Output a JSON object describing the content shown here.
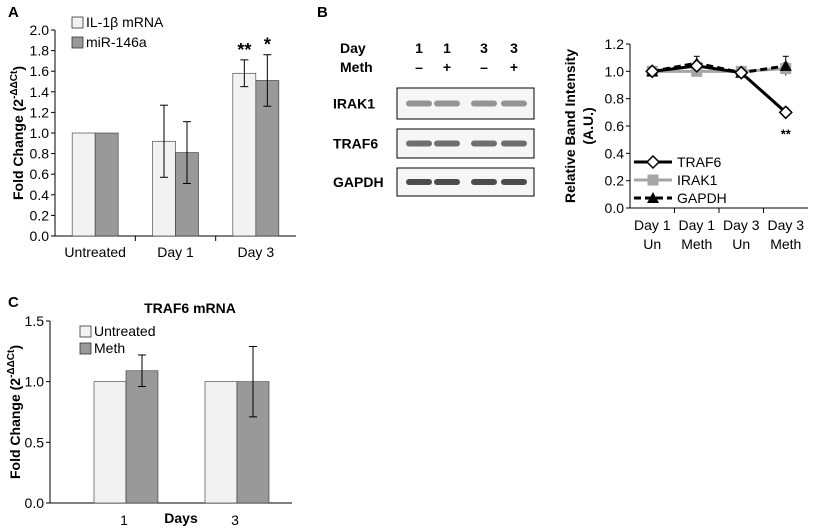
{
  "panels": {
    "a": "A",
    "b": "B",
    "c": "C"
  },
  "colors": {
    "bar_light": "#f2f2f2",
    "bar_dark": "#999999",
    "line_traf6": "#000000",
    "line_irak1": "#a6a6a6",
    "line_gapdh": "#000000"
  },
  "chart_data": [
    {
      "id": "panel_a",
      "type": "bar",
      "categories": [
        "Untreated",
        "Day 1",
        "Day 3"
      ],
      "ylabel_main": "Fold Change (2",
      "ylabel_exp": "-ΔΔCt",
      "ylabel_close": ")",
      "ylim": [
        0,
        2.0
      ],
      "yticks": [
        "0.0",
        "0.2",
        "0.4",
        "0.6",
        "0.8",
        "1.0",
        "1.2",
        "1.4",
        "1.6",
        "1.8",
        "2.0"
      ],
      "legend_position": "top-left",
      "series": [
        {
          "name": "IL-1β mRNA",
          "values": [
            1.0,
            0.92,
            1.58
          ],
          "errors": [
            0,
            0.35,
            0.13
          ]
        },
        {
          "name": "miR-146a",
          "values": [
            1.0,
            0.81,
            1.51
          ],
          "errors": [
            0,
            0.3,
            0.25
          ]
        }
      ],
      "annotations": [
        "**",
        "*"
      ]
    },
    {
      "id": "panel_b_line",
      "type": "line",
      "categories": [
        "Day 1 Un",
        "Day 1 Meth",
        "Day 3 Un",
        "Day 3 Meth"
      ],
      "category_lines": [
        [
          "Day 1",
          "Un"
        ],
        [
          "Day 1",
          "Meth"
        ],
        [
          "Day 3",
          "Un"
        ],
        [
          "Day 3",
          "Meth"
        ]
      ],
      "ylabel_lines": [
        "Relative Band Intensity",
        "(A.U.)"
      ],
      "ylim": [
        0,
        1.2
      ],
      "yticks": [
        "0.0",
        "0.2",
        "0.4",
        "0.6",
        "0.8",
        "1.0",
        "1.2"
      ],
      "legend_position": "bottom-left",
      "series": [
        {
          "name": "TRAF6",
          "values": [
            1.0,
            1.04,
            0.99,
            0.7
          ],
          "errors": [
            0.02,
            0.03,
            0.02,
            0.03
          ]
        },
        {
          "name": "IRAK1",
          "values": [
            1.0,
            1.0,
            1.0,
            1.02
          ],
          "errors": [
            0.02,
            0.02,
            0.02,
            0.04
          ]
        },
        {
          "name": "GAPDH",
          "values": [
            1.0,
            1.06,
            0.99,
            1.04
          ],
          "errors": [
            0.03,
            0.05,
            0.02,
            0.07
          ]
        }
      ],
      "annotations": [
        "**"
      ]
    },
    {
      "id": "panel_c",
      "type": "bar",
      "title": "TRAF6 mRNA",
      "categories": [
        "1",
        "3"
      ],
      "xlabel": "Days",
      "ylabel_main": "Fold Change (2",
      "ylabel_exp": "-ΔΔCt",
      "ylabel_close": ")",
      "ylim": [
        0,
        1.5
      ],
      "yticks": [
        "0.0",
        "0.5",
        "1.0",
        "1.5"
      ],
      "legend_position": "top-left",
      "series": [
        {
          "name": "Untreated",
          "values": [
            1.0,
            1.0
          ],
          "errors": [
            0,
            0
          ]
        },
        {
          "name": "Meth",
          "values": [
            1.09,
            1.0
          ],
          "errors": [
            0.13,
            0.29
          ]
        }
      ]
    }
  ],
  "blot": {
    "day_label": "Day",
    "meth_label": "Meth",
    "days": [
      "1",
      "1",
      "3",
      "3"
    ],
    "meth": [
      "–",
      "+",
      "–",
      "+"
    ],
    "proteins": [
      "IRAK1",
      "TRAF6",
      "GAPDH"
    ]
  }
}
